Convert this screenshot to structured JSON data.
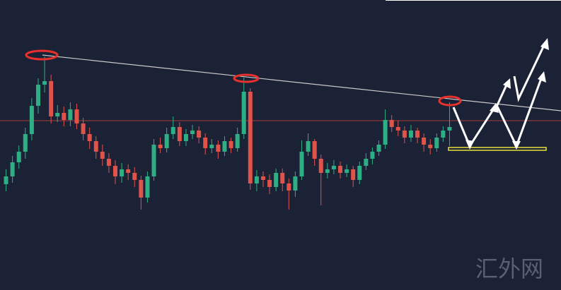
{
  "chart_data": {
    "type": "candlestick",
    "open": [
      150,
      161,
      181,
      196,
      221,
      261,
      291,
      296,
      246,
      251,
      241,
      256,
      236,
      221,
      211,
      196,
      186,
      176,
      161,
      171,
      166,
      156,
      131,
      161,
      206,
      201,
      221,
      231,
      211,
      221,
      226,
      216,
      201,
      206,
      196,
      211,
      201,
      221,
      281,
      151,
      161,
      156,
      146,
      166,
      151,
      141,
      161,
      196,
      211,
      186,
      166,
      171,
      176,
      166,
      171,
      156,
      176,
      186,
      196,
      206,
      241,
      231,
      226,
      216,
      226,
      216,
      206,
      201,
      216,
      226
    ],
    "high": [
      171,
      190,
      205,
      230,
      272,
      300,
      331,
      305,
      262,
      260,
      266,
      264,
      244,
      230,
      218,
      206,
      194,
      184,
      180,
      178,
      174,
      162,
      168,
      214,
      216,
      230,
      246,
      238,
      228,
      234,
      232,
      222,
      214,
      212,
      218,
      216,
      230,
      301,
      286,
      170,
      168,
      164,
      172,
      172,
      158,
      168,
      212,
      222,
      214,
      192,
      180,
      184,
      182,
      178,
      176,
      182,
      194,
      202,
      212,
      256,
      248,
      240,
      232,
      234,
      230,
      222,
      214,
      222,
      232,
      266
    ],
    "low": [
      140,
      152,
      172,
      186,
      212,
      250,
      280,
      236,
      238,
      232,
      232,
      228,
      212,
      200,
      186,
      176,
      166,
      150,
      152,
      156,
      146,
      114,
      124,
      155,
      194,
      195,
      214,
      204,
      204,
      214,
      208,
      192,
      194,
      186,
      190,
      194,
      196,
      214,
      142,
      140,
      146,
      136,
      140,
      140,
      114,
      132,
      156,
      190,
      176,
      120,
      158,
      164,
      158,
      160,
      146,
      150,
      170,
      178,
      190,
      200,
      224,
      218,
      208,
      210,
      208,
      196,
      192,
      196,
      210,
      204
    ],
    "close": [
      161,
      181,
      196,
      221,
      261,
      291,
      296,
      246,
      251,
      241,
      256,
      236,
      221,
      211,
      196,
      186,
      176,
      161,
      171,
      166,
      156,
      131,
      161,
      206,
      201,
      221,
      231,
      211,
      221,
      226,
      216,
      201,
      206,
      196,
      211,
      201,
      221,
      281,
      151,
      161,
      156,
      146,
      166,
      151,
      141,
      161,
      196,
      211,
      186,
      166,
      171,
      176,
      166,
      171,
      156,
      176,
      186,
      196,
      206,
      241,
      231,
      226,
      216,
      226,
      216,
      206,
      201,
      216,
      226,
      231
    ],
    "ylim": [
      0,
      411
    ],
    "up_color": "#2eae84",
    "down_color": "#e0534b"
  },
  "watermark": "汇外网"
}
